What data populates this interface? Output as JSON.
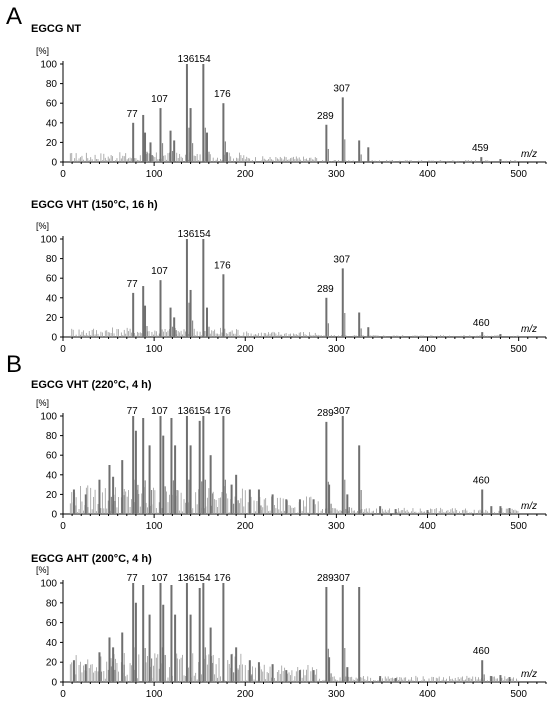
{
  "panel_letters": [
    "A",
    "B"
  ],
  "chart_data": [
    {
      "type": "bar",
      "title": "EGCG NT",
      "ylabel": "[%]",
      "xlabel": "m/z",
      "xlim": [
        0,
        530
      ],
      "ylim": [
        0,
        100
      ],
      "xticks": [
        "0",
        "100",
        "200",
        "300",
        "400",
        "500"
      ],
      "yticks": [
        "0",
        "20",
        "40",
        "60",
        "80",
        "100"
      ],
      "peaks": [
        [
          77,
          40
        ],
        [
          88,
          48
        ],
        [
          90,
          30
        ],
        [
          96,
          20
        ],
        [
          107,
          55
        ],
        [
          118,
          32
        ],
        [
          122,
          22
        ],
        [
          136,
          100
        ],
        [
          140,
          55
        ],
        [
          154,
          100
        ],
        [
          158,
          30
        ],
        [
          176,
          60
        ],
        [
          180,
          10
        ],
        [
          289,
          38
        ],
        [
          307,
          66
        ],
        [
          325,
          22
        ],
        [
          335,
          15
        ],
        [
          459,
          5
        ],
        [
          480,
          3
        ]
      ],
      "annotations": [
        {
          "label": "77",
          "x": 77
        },
        {
          "label": "107",
          "x": 107
        },
        {
          "label": "136",
          "x": 136
        },
        {
          "label": "154",
          "x": 154
        },
        {
          "label": "176",
          "x": 176
        },
        {
          "label": "289",
          "x": 289
        },
        {
          "label": "307",
          "x": 307
        },
        {
          "label": "459",
          "x": 459
        }
      ]
    },
    {
      "type": "bar",
      "title": "EGCG VHT (150°C, 16 h)",
      "ylabel": "[%]",
      "xlabel": "m/z",
      "xlim": [
        0,
        530
      ],
      "ylim": [
        0,
        100
      ],
      "xticks": [
        "0",
        "100",
        "200",
        "300",
        "400",
        "500"
      ],
      "yticks": [
        "0",
        "20",
        "40",
        "60",
        "80",
        "100"
      ],
      "peaks": [
        [
          77,
          45
        ],
        [
          88,
          52
        ],
        [
          90,
          32
        ],
        [
          107,
          58
        ],
        [
          118,
          30
        ],
        [
          122,
          20
        ],
        [
          136,
          100
        ],
        [
          140,
          48
        ],
        [
          154,
          100
        ],
        [
          158,
          30
        ],
        [
          176,
          64
        ],
        [
          289,
          40
        ],
        [
          307,
          70
        ],
        [
          325,
          25
        ],
        [
          335,
          10
        ],
        [
          460,
          5
        ],
        [
          480,
          3
        ]
      ],
      "annotations": [
        {
          "label": "77",
          "x": 77
        },
        {
          "label": "107",
          "x": 107
        },
        {
          "label": "136",
          "x": 136
        },
        {
          "label": "154",
          "x": 154
        },
        {
          "label": "176",
          "x": 176
        },
        {
          "label": "289",
          "x": 289
        },
        {
          "label": "307",
          "x": 307
        },
        {
          "label": "460",
          "x": 460
        }
      ]
    },
    {
      "type": "bar",
      "title": "EGCG VHT (220°C, 4 h)",
      "ylabel": "[%]",
      "xlabel": "m/z",
      "xlim": [
        0,
        530
      ],
      "ylim": [
        0,
        100
      ],
      "xticks": [
        "0",
        "100",
        "200",
        "300",
        "400",
        "500"
      ],
      "yticks": [
        "0",
        "20",
        "40",
        "60",
        "80",
        "100"
      ],
      "peaks": [
        [
          12,
          25
        ],
        [
          25,
          20
        ],
        [
          40,
          35
        ],
        [
          51,
          50
        ],
        [
          55,
          38
        ],
        [
          65,
          55
        ],
        [
          77,
          100
        ],
        [
          80,
          85
        ],
        [
          88,
          98
        ],
        [
          95,
          70
        ],
        [
          107,
          100
        ],
        [
          110,
          80
        ],
        [
          119,
          98
        ],
        [
          123,
          70
        ],
        [
          136,
          100
        ],
        [
          140,
          70
        ],
        [
          150,
          95
        ],
        [
          154,
          100
        ],
        [
          162,
          60
        ],
        [
          176,
          100
        ],
        [
          185,
          30
        ],
        [
          190,
          40
        ],
        [
          205,
          25
        ],
        [
          215,
          25
        ],
        [
          230,
          20
        ],
        [
          245,
          15
        ],
        [
          260,
          15
        ],
        [
          275,
          15
        ],
        [
          289,
          94
        ],
        [
          292,
          30
        ],
        [
          307,
          100
        ],
        [
          312,
          20
        ],
        [
          325,
          70
        ],
        [
          348,
          8
        ],
        [
          365,
          5
        ],
        [
          400,
          4
        ],
        [
          460,
          25
        ],
        [
          470,
          8
        ],
        [
          480,
          8
        ],
        [
          490,
          6
        ]
      ],
      "annotations": [
        {
          "label": "77",
          "x": 77
        },
        {
          "label": "107",
          "x": 107
        },
        {
          "label": "136",
          "x": 136
        },
        {
          "label": "154",
          "x": 154
        },
        {
          "label": "176",
          "x": 176
        },
        {
          "label": "289",
          "x": 289
        },
        {
          "label": "307",
          "x": 307
        },
        {
          "label": "460",
          "x": 460
        }
      ]
    },
    {
      "type": "bar",
      "title": "EGCG AHT (200°C, 4 h)",
      "ylabel": "[%]",
      "xlabel": "m/z",
      "xlim": [
        0,
        530
      ],
      "ylim": [
        0,
        100
      ],
      "xticks": [
        "0",
        "100",
        "200",
        "300",
        "400",
        "500"
      ],
      "yticks": [
        "0",
        "20",
        "40",
        "60",
        "80",
        "100"
      ],
      "peaks": [
        [
          12,
          22
        ],
        [
          25,
          18
        ],
        [
          40,
          30
        ],
        [
          51,
          45
        ],
        [
          55,
          35
        ],
        [
          65,
          50
        ],
        [
          77,
          100
        ],
        [
          80,
          80
        ],
        [
          88,
          98
        ],
        [
          95,
          68
        ],
        [
          107,
          100
        ],
        [
          110,
          78
        ],
        [
          119,
          98
        ],
        [
          123,
          68
        ],
        [
          136,
          100
        ],
        [
          140,
          68
        ],
        [
          150,
          95
        ],
        [
          154,
          100
        ],
        [
          162,
          55
        ],
        [
          176,
          100
        ],
        [
          185,
          28
        ],
        [
          190,
          35
        ],
        [
          205,
          22
        ],
        [
          215,
          20
        ],
        [
          230,
          18
        ],
        [
          245,
          12
        ],
        [
          260,
          12
        ],
        [
          275,
          12
        ],
        [
          289,
          96
        ],
        [
          292,
          25
        ],
        [
          307,
          98
        ],
        [
          312,
          15
        ],
        [
          325,
          96
        ],
        [
          348,
          6
        ],
        [
          365,
          4
        ],
        [
          460,
          22
        ],
        [
          470,
          6
        ],
        [
          480,
          7
        ],
        [
          490,
          5
        ]
      ],
      "annotations": [
        {
          "label": "77",
          "x": 77
        },
        {
          "label": "107",
          "x": 107
        },
        {
          "label": "136",
          "x": 136
        },
        {
          "label": "154",
          "x": 154
        },
        {
          "label": "176",
          "x": 176
        },
        {
          "label": "289",
          "x": 289
        },
        {
          "label": "307",
          "x": 307
        },
        {
          "label": "460",
          "x": 460
        }
      ]
    }
  ]
}
